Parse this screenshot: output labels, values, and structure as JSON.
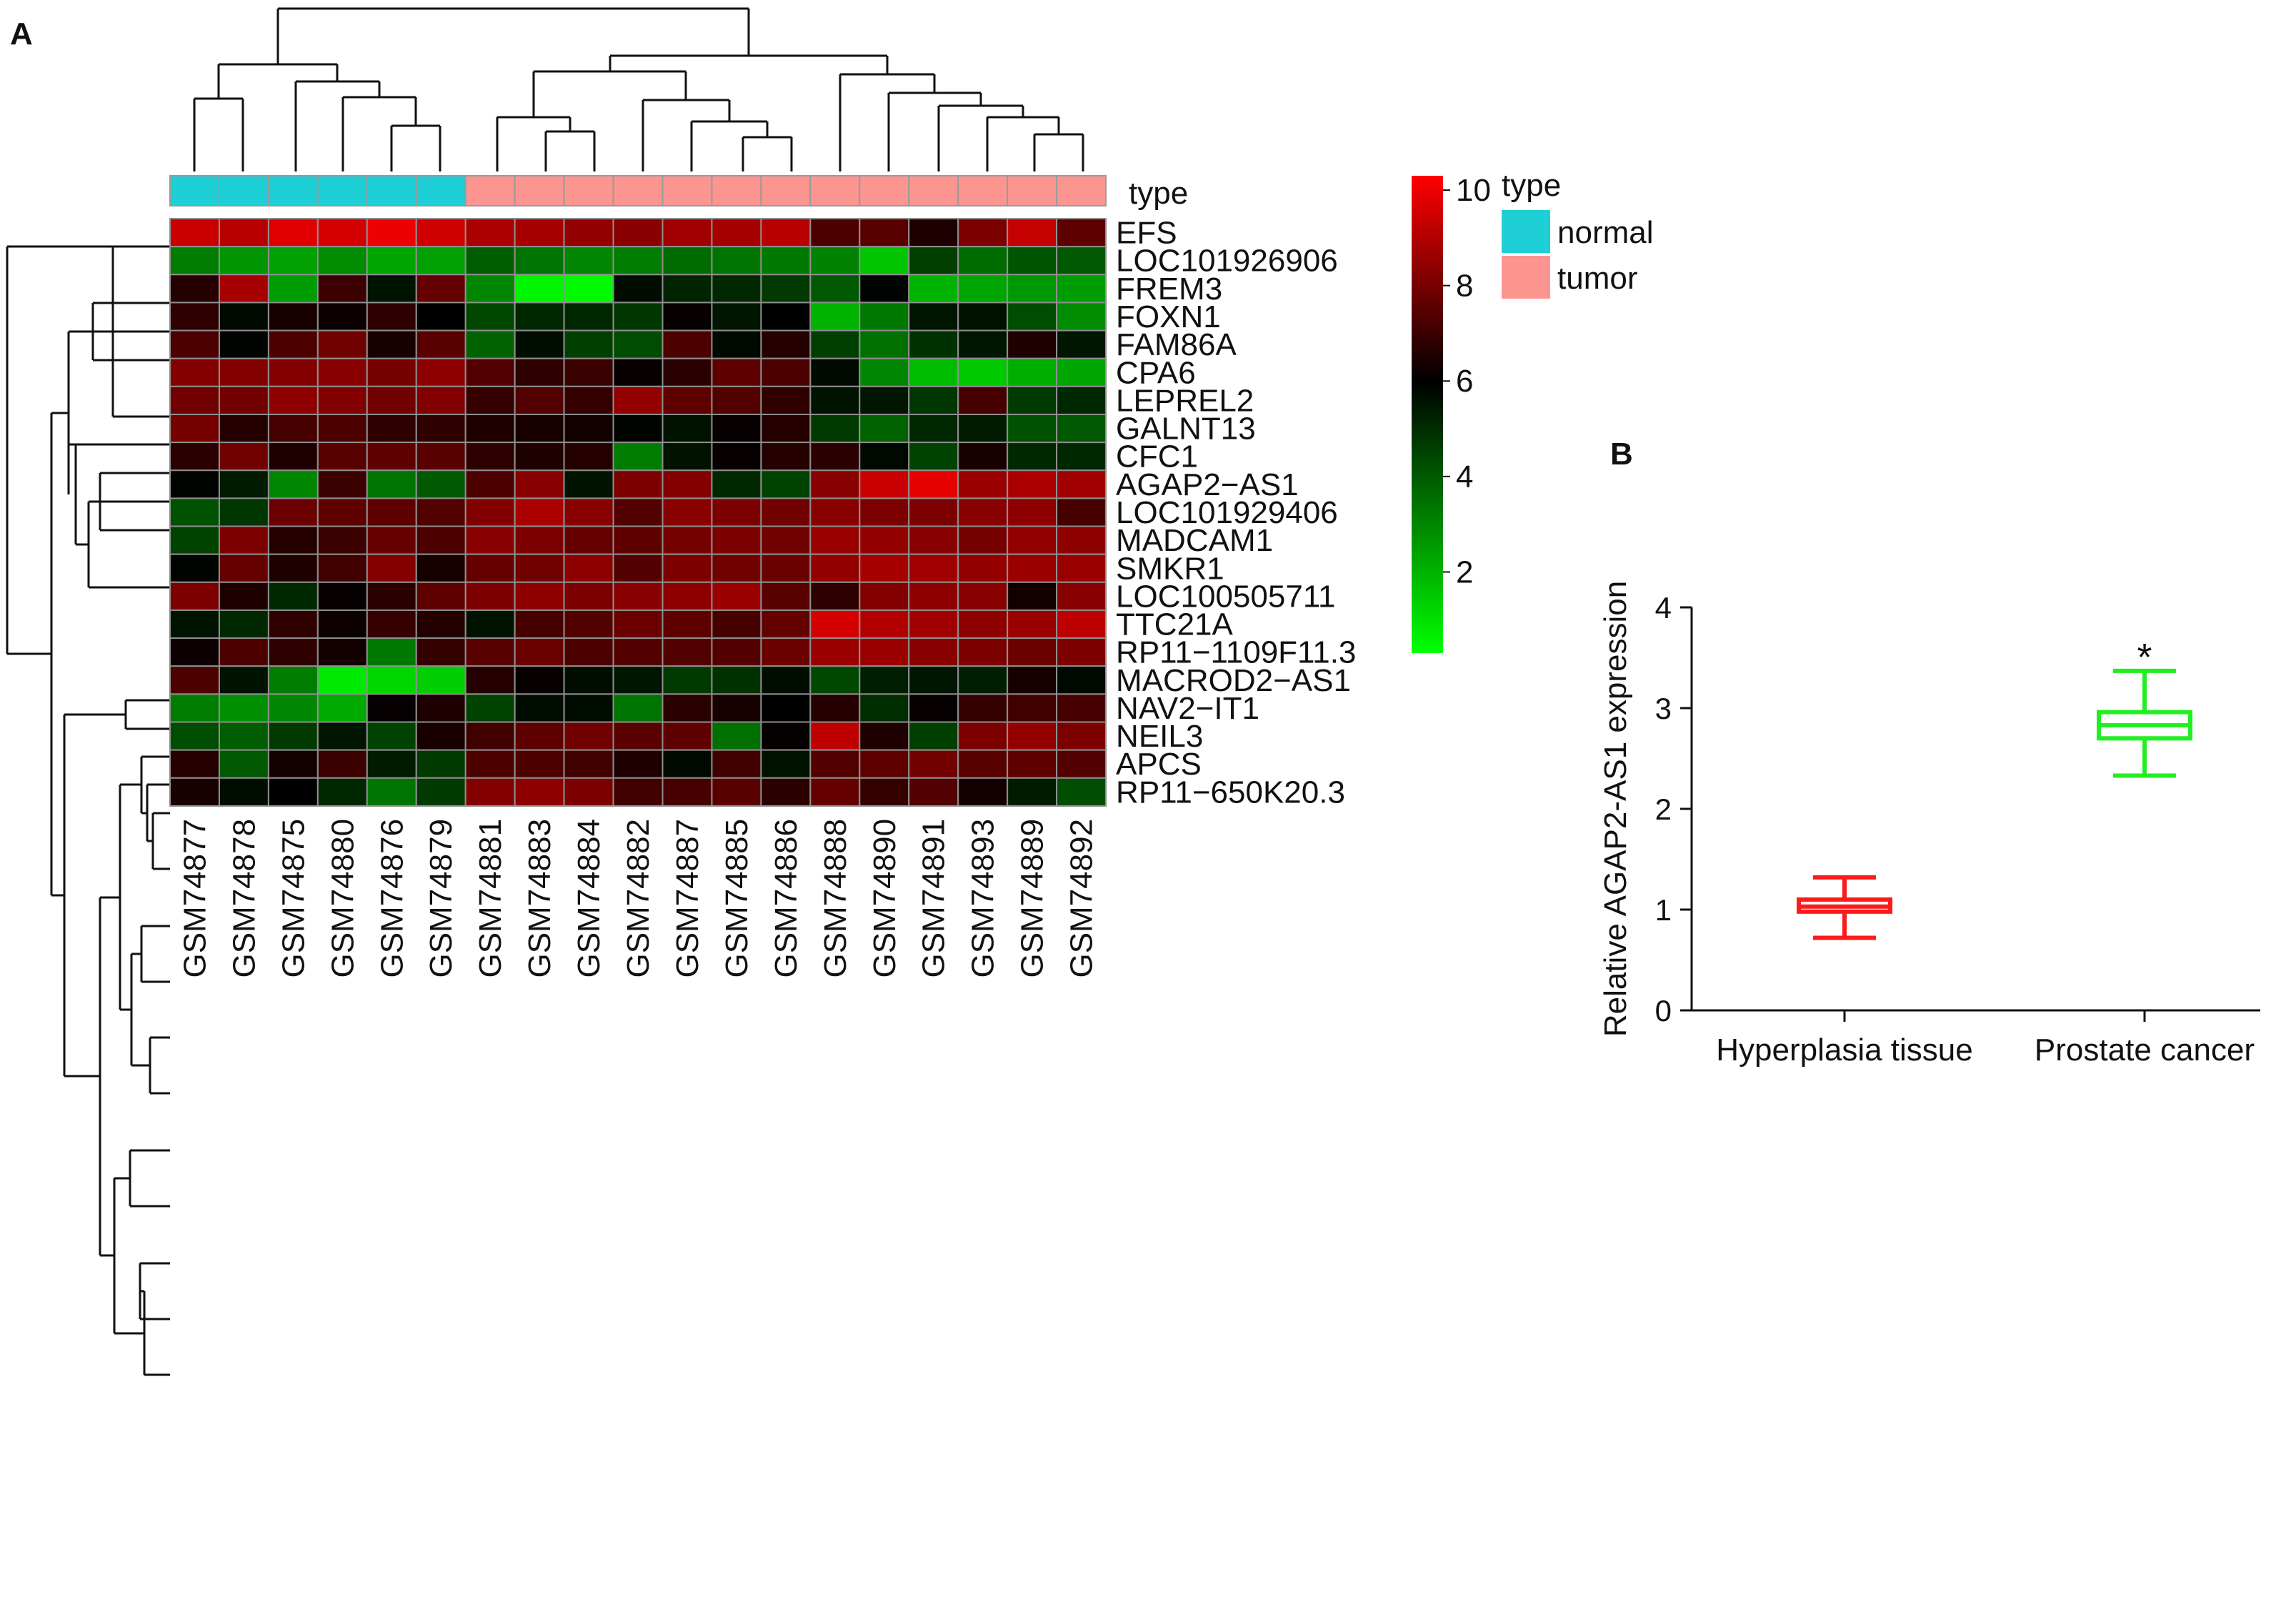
{
  "panels": {
    "a_letter": "A",
    "b_letter": "B"
  },
  "heatmap": {
    "annotation_label": "type",
    "samples": [
      "GSM74877",
      "GSM74878",
      "GSM74875",
      "GSM74880",
      "GSM74876",
      "GSM74879",
      "GSM74881",
      "GSM74883",
      "GSM74884",
      "GSM74882",
      "GSM74887",
      "GSM74885",
      "GSM74886",
      "GSM74888",
      "GSM74890",
      "GSM74891",
      "GSM74893",
      "GSM74889",
      "GSM74892"
    ],
    "sample_types": [
      "normal",
      "normal",
      "normal",
      "normal",
      "normal",
      "normal",
      "tumor",
      "tumor",
      "tumor",
      "tumor",
      "tumor",
      "tumor",
      "tumor",
      "tumor",
      "tumor",
      "tumor",
      "tumor",
      "tumor",
      "tumor"
    ],
    "genes": [
      "EFS",
      "LOC101926906",
      "FREM3",
      "FOXN1",
      "FAM86A",
      "CPA6",
      "LEPREL2",
      "GALNT13",
      "CFC1",
      "AGAP2−AS1",
      "LOC101929406",
      "MADCAM1",
      "SMKR1",
      "LOC100505711",
      "TTC21A",
      "RP11−1109F11.3",
      "MACROD2−AS1",
      "NAV2−IT1",
      "NEIL3",
      "APCS",
      "RP11−650K20.3"
    ],
    "values": [
      [
        9.4,
        9.1,
        9.8,
        9.6,
        10.0,
        9.5,
        8.9,
        8.8,
        8.5,
        8.3,
        8.7,
        8.8,
        9.1,
        7.3,
        7.5,
        6.5,
        8.1,
        9.3,
        7.6
      ],
      [
        3.2,
        2.7,
        2.4,
        2.9,
        2.3,
        2.4,
        3.9,
        3.4,
        3.0,
        3.2,
        3.6,
        3.4,
        3.3,
        3.1,
        1.6,
        4.6,
        3.6,
        4.1,
        4.0
      ],
      [
        6.6,
        8.8,
        2.5,
        7.0,
        5.6,
        7.7,
        3.0,
        0.5,
        0.4,
        5.7,
        5.2,
        5.1,
        4.7,
        4.0,
        5.9,
        2.0,
        2.3,
        2.6,
        2.5
      ],
      [
        6.8,
        5.8,
        6.4,
        6.2,
        6.8,
        6.0,
        4.4,
        5.1,
        5.1,
        4.8,
        6.1,
        5.5,
        6.0,
        2.0,
        3.3,
        5.5,
        5.6,
        4.3,
        2.9
      ],
      [
        7.3,
        5.9,
        7.3,
        7.9,
        6.4,
        7.5,
        3.8,
        5.7,
        4.6,
        4.3,
        7.3,
        5.8,
        6.6,
        4.6,
        3.5,
        4.9,
        5.5,
        6.5,
        5.5
      ],
      [
        8.2,
        8.2,
        8.2,
        8.3,
        8.0,
        8.4,
        7.4,
        6.8,
        7.0,
        6.1,
        6.7,
        7.6,
        7.3,
        5.8,
        3.0,
        1.8,
        1.5,
        2.1,
        2.3
      ],
      [
        7.9,
        7.9,
        8.4,
        8.2,
        7.9,
        8.2,
        6.9,
        7.4,
        6.9,
        8.5,
        7.6,
        7.4,
        6.8,
        5.6,
        5.5,
        4.8,
        7.2,
        4.7,
        5.1
      ],
      [
        8.0,
        6.6,
        7.2,
        7.3,
        6.8,
        6.8,
        6.5,
        6.4,
        6.3,
        5.9,
        5.6,
        6.1,
        6.6,
        4.7,
        3.8,
        5.1,
        5.4,
        4.2,
        4.0
      ],
      [
        6.7,
        7.9,
        6.5,
        7.5,
        7.6,
        7.5,
        6.8,
        6.5,
        6.6,
        3.2,
        5.6,
        6.1,
        6.6,
        6.7,
        5.8,
        4.5,
        6.4,
        5.1,
        5.1
      ],
      [
        5.9,
        5.4,
        3.0,
        7.0,
        3.4,
        4.0,
        7.3,
        8.3,
        5.6,
        8.1,
        8.2,
        5.1,
        4.5,
        8.3,
        9.4,
        9.9,
        8.6,
        8.9,
        8.7
      ],
      [
        4.2,
        4.8,
        7.8,
        7.6,
        7.6,
        7.4,
        8.2,
        8.9,
        8.3,
        7.4,
        8.3,
        8.1,
        7.9,
        8.3,
        8.1,
        8.1,
        8.3,
        8.4,
        7.2
      ],
      [
        4.5,
        8.1,
        6.6,
        7.0,
        7.7,
        7.3,
        8.3,
        8.1,
        7.7,
        7.6,
        8.0,
        8.1,
        7.9,
        8.6,
        8.5,
        8.3,
        8.0,
        8.5,
        8.4
      ],
      [
        5.9,
        7.7,
        6.5,
        7.1,
        8.2,
        6.4,
        7.7,
        7.9,
        8.4,
        7.4,
        8.1,
        7.9,
        7.8,
        8.5,
        8.8,
        8.7,
        8.5,
        8.6,
        8.6
      ],
      [
        8.1,
        6.5,
        5.1,
        6.1,
        6.7,
        7.6,
        8.1,
        8.4,
        8.1,
        8.3,
        8.4,
        8.6,
        7.5,
        6.8,
        8.2,
        8.4,
        8.3,
        6.3,
        8.3
      ],
      [
        5.6,
        5.1,
        6.8,
        6.2,
        6.9,
        6.6,
        5.6,
        7.2,
        7.4,
        7.8,
        7.6,
        7.2,
        7.7,
        9.6,
        9.0,
        8.7,
        8.4,
        8.6,
        9.2
      ],
      [
        6.2,
        7.3,
        6.8,
        6.3,
        3.3,
        6.9,
        7.5,
        7.8,
        7.3,
        7.4,
        7.4,
        7.4,
        7.8,
        8.6,
        8.6,
        8.3,
        8.1,
        7.8,
        8.1
      ],
      [
        7.3,
        5.6,
        3.2,
        0.8,
        1.2,
        1.4,
        6.6,
        6.1,
        5.7,
        5.5,
        4.7,
        4.9,
        5.7,
        4.4,
        5.3,
        5.5,
        5.3,
        6.4,
        5.8
      ],
      [
        3.2,
        2.8,
        3.0,
        2.2,
        6.1,
        6.5,
        4.5,
        5.7,
        5.7,
        3.4,
        6.7,
        6.4,
        6.0,
        6.6,
        5.0,
        6.1,
        6.9,
        7.1,
        7.2
      ],
      [
        4.3,
        3.9,
        4.7,
        5.5,
        4.5,
        6.4,
        7.1,
        7.6,
        7.9,
        7.5,
        7.6,
        3.5,
        6.1,
        9.2,
        6.5,
        4.6,
        8.1,
        8.5,
        8.1
      ],
      [
        6.6,
        4.0,
        6.3,
        7.0,
        5.4,
        4.7,
        7.3,
        7.3,
        7.1,
        6.5,
        5.8,
        7.1,
        5.6,
        7.4,
        7.6,
        7.9,
        7.5,
        7.6,
        7.4
      ],
      [
        6.4,
        5.7,
        6.0,
        5.1,
        3.4,
        4.7,
        8.2,
        8.4,
        8.1,
        7.1,
        7.2,
        7.5,
        6.7,
        7.7,
        6.9,
        7.4,
        6.3,
        5.4,
        4.3
      ]
    ],
    "colorbar": {
      "min": 0.3,
      "max": 10.3,
      "ticks": [
        "10",
        "8",
        "6",
        "4",
        "2"
      ],
      "tick_values": [
        10,
        8,
        6,
        4,
        2
      ],
      "colors": [
        "#00ff00",
        "#000000",
        "#ff0000"
      ]
    },
    "legend": {
      "title": "type",
      "items": [
        {
          "label": "normal",
          "color": "#1fcfd6"
        },
        {
          "label": "tumor",
          "color": "#fc9590"
        }
      ]
    }
  },
  "chart_data": {
    "type": "box",
    "ylabel": "Relative AGAP2-AS1 expression",
    "ylim": [
      0,
      4
    ],
    "yticks": [
      "0",
      "1",
      "2",
      "3",
      "4"
    ],
    "categories": [
      "Hyperplasia tissue",
      "Prostate cancer"
    ],
    "boxes": [
      {
        "category": "Hyperplasia tissue",
        "min": 0.72,
        "q1": 0.98,
        "median": 1.03,
        "q3": 1.1,
        "max": 1.32,
        "color": "#ff1a1a"
      },
      {
        "category": "Prostate cancer",
        "min": 2.33,
        "q1": 2.7,
        "median": 2.83,
        "q3": 2.96,
        "max": 3.37,
        "color": "#22ee22"
      }
    ],
    "annotation": "*",
    "annotation_category": "Prostate cancer"
  }
}
